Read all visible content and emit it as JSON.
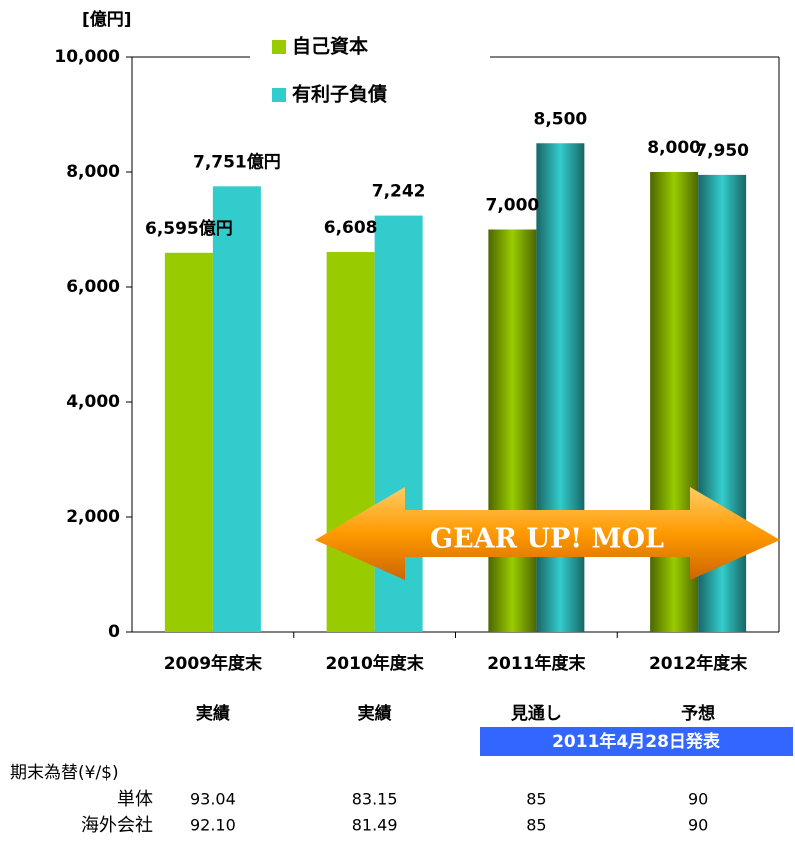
{
  "chart_data": {
    "type": "bar",
    "y_unit": "[億円]",
    "categories": [
      "2009年度末",
      "2010年度末",
      "2011年度末",
      "2012年度末"
    ],
    "category_sublabels": [
      "実績",
      "実績",
      "見通し",
      "予想"
    ],
    "series": [
      {
        "name": "自己資本",
        "color": "#99cc00",
        "values": [
          6595,
          6608,
          7000,
          8000
        ],
        "value_labels": [
          "6,595億円",
          "6,608",
          "7,000",
          "8,000"
        ]
      },
      {
        "name": "有利子負債",
        "color": "#33cccc",
        "values": [
          7751,
          7242,
          8500,
          7950
        ],
        "value_labels": [
          "7,751億円",
          "7,242",
          "8,500",
          "7,950"
        ]
      }
    ],
    "ylim": [
      0,
      10000
    ],
    "yticks": [
      0,
      {
        "value": 2000,
        "label": "2,000"
      },
      {
        "value": 4000,
        "label": "4,000"
      },
      {
        "value": 6000,
        "label": "6,000"
      },
      {
        "value": 8000,
        "label": "8,000"
      },
      {
        "value": 10000,
        "label": "10,000"
      }
    ],
    "annotations": [
      "GEAR UP! MOL",
      "2011年4月28日発表"
    ],
    "fx_table": {
      "title": "期末為替(¥/$)",
      "rows": [
        {
          "label": "単体",
          "values": [
            "93.04",
            "83.15",
            "85",
            "90"
          ]
        },
        {
          "label": "海外会社",
          "values": [
            "92.10",
            "81.49",
            "85",
            "90"
          ]
        }
      ]
    }
  }
}
